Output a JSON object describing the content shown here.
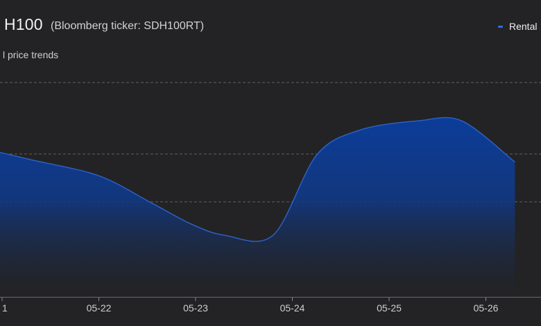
{
  "header": {
    "title": "H100",
    "subtitle": "(Bloomberg ticker: SDH100RT)",
    "caption": "l price trends"
  },
  "legend": {
    "label": "Rental"
  },
  "colors": {
    "background": "#232325",
    "line": "#2e63c9",
    "fill_top": "#0c3d9a",
    "fill_bottom": "#232325",
    "grid": "#8a8a8a"
  },
  "chart_data": {
    "type": "area",
    "x_tick_labels": [
      "1",
      "05-22",
      "05-23",
      "05-24",
      "05-25",
      "05-26"
    ],
    "x": [
      -0.1,
      0.3,
      1.0,
      1.55,
      1.95,
      2.3,
      2.8,
      3.25,
      3.7,
      4.3,
      4.75,
      5.3
    ],
    "values": [
      0.63,
      0.59,
      0.52,
      0.4,
      0.31,
      0.26,
      0.26,
      0.61,
      0.72,
      0.76,
      0.76,
      0.58
    ],
    "grid": "dashed-horizontal",
    "legend_position": "top-right"
  }
}
